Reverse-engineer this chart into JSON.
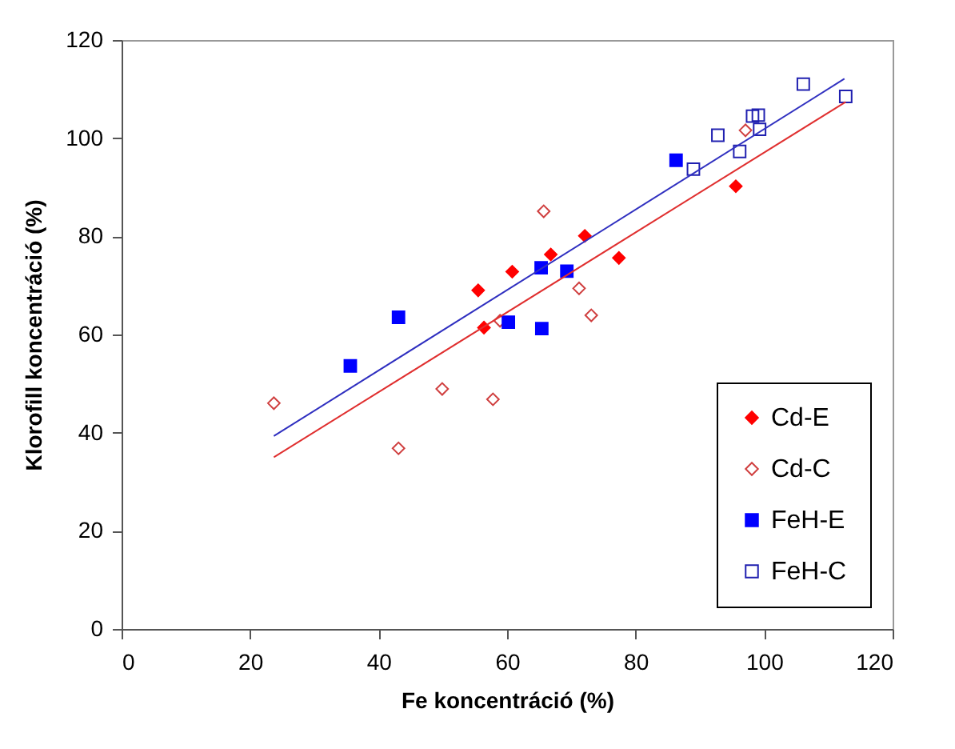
{
  "chart_data": {
    "type": "scatter",
    "xlabel": "Fe koncentráció (%)",
    "ylabel": "Klorofill koncentráció (%)",
    "xlim": [
      0,
      120
    ],
    "xticks": [
      0,
      20,
      40,
      60,
      80,
      100,
      120
    ],
    "ylim": [
      0,
      120
    ],
    "yticks": [
      0,
      20,
      40,
      60,
      80,
      100,
      120
    ],
    "grid": false,
    "legend": "bottom right",
    "series": [
      {
        "name": "Cd-E",
        "color": "#ff0000",
        "marker": "diamond",
        "x": [
          55.5,
          56.4,
          60.8,
          66.8,
          72.1,
          77.4,
          95.6
        ],
        "values": [
          69.0,
          61.4,
          72.8,
          76.3,
          80.1,
          75.6,
          90.2
        ]
      },
      {
        "name": "Cd-C",
        "color": "#d04040",
        "marker": "diamond",
        "line_style": "none",
        "x": [
          23.7,
          43.1,
          49.9,
          57.8,
          58.9,
          65.7,
          71.2,
          73.1,
          97.1
        ],
        "values": [
          46.0,
          36.8,
          48.9,
          46.8,
          62.8,
          85.1,
          69.4,
          63.9,
          101.6
        ]
      },
      {
        "name": "FeH-E",
        "color": "#0000ff",
        "marker": "square",
        "x": [
          35.6,
          43.1,
          60.2,
          65.4,
          65.3,
          69.3,
          86.3
        ],
        "values": [
          53.6,
          63.5,
          62.5,
          61.2,
          73.6,
          72.9,
          95.5
        ]
      },
      {
        "name": "FeH-C",
        "color": "#2020b0",
        "marker": "square",
        "line_style": "none",
        "x": [
          89.0,
          92.8,
          96.2,
          98.2,
          99.1,
          99.3,
          106.1,
          112.7
        ],
        "values": [
          93.7,
          100.6,
          97.3,
          104.5,
          104.7,
          101.8,
          111.0,
          108.5
        ]
      },
      {
        "type": "line",
        "color": "#e03030",
        "x": [
          23.7,
          112.7
        ],
        "values": [
          35.0,
          107.4
        ]
      },
      {
        "type": "line",
        "color": "#3030c0",
        "x": [
          23.7,
          112.5
        ],
        "values": [
          39.3,
          112.1
        ]
      }
    ]
  }
}
